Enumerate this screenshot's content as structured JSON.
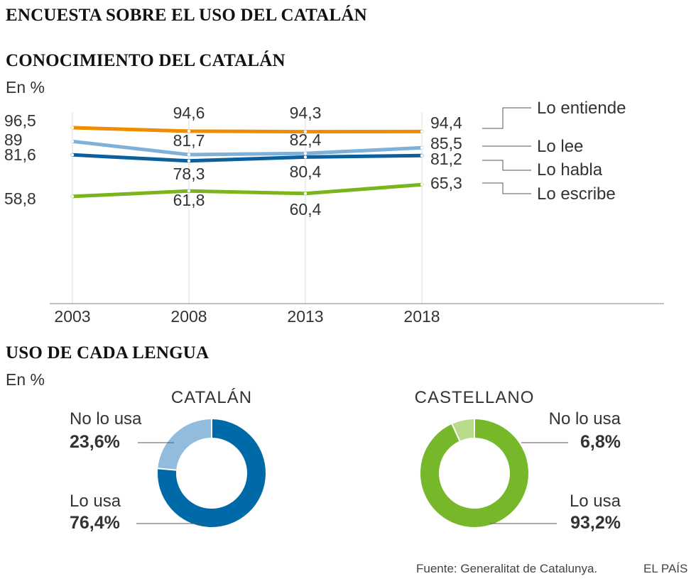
{
  "header": {
    "title": "ENCUESTA SOBRE EL USO DEL CATALÁN"
  },
  "line_section": {
    "title": "CONOCIMIENTO DEL CATALÁN",
    "unit": "En %"
  },
  "donut_section": {
    "title": "USO DE CADA LENGUA",
    "unit": "En %"
  },
  "footer": {
    "source": "Fuente: Generalitat de Catalunya.",
    "brand": "EL PAÍS"
  },
  "chart_data": [
    {
      "type": "line",
      "title": "CONOCIMIENTO DEL CATALÁN",
      "ylabel": "En %",
      "x": [
        "2003",
        "2008",
        "2013",
        "2018"
      ],
      "ylim": [
        0,
        100
      ],
      "series": [
        {
          "name": "Lo entiende",
          "color": "#f08c00",
          "values": [
            96.5,
            94.6,
            94.3,
            94.4
          ],
          "labels": [
            "96,5",
            "94,6",
            "94,3",
            "94,4"
          ]
        },
        {
          "name": "Lo lee",
          "color": "#7fb0d8",
          "values": [
            89,
            81.7,
            82.4,
            85.5
          ],
          "labels": [
            "89",
            "81,7",
            "82,4",
            "85,5"
          ]
        },
        {
          "name": "Lo habla",
          "color": "#0a5f9c",
          "values": [
            81.6,
            78.3,
            80.4,
            81.2
          ],
          "labels": [
            "81,6",
            "78,3",
            "80,4",
            "81,2"
          ]
        },
        {
          "name": "Lo escribe",
          "color": "#7ab51d",
          "values": [
            58.8,
            61.8,
            60.4,
            65.3
          ],
          "labels": [
            "58,8",
            "61,8",
            "60,4",
            "65,3"
          ]
        }
      ]
    },
    {
      "type": "pie",
      "title": "CATALÁN",
      "slices": [
        {
          "name": "No lo usa",
          "value": 23.6,
          "label": "23,6%",
          "color": "#92bcde"
        },
        {
          "name": "Lo usa",
          "value": 76.4,
          "label": "76,4%",
          "color": "#006aa8"
        }
      ]
    },
    {
      "type": "pie",
      "title": "CASTELLANO",
      "slices": [
        {
          "name": "No lo usa",
          "value": 6.8,
          "label": "6,8%",
          "color": "#b9db8c"
        },
        {
          "name": "Lo usa",
          "value": 93.2,
          "label": "93,2%",
          "color": "#76b82a"
        }
      ]
    }
  ]
}
